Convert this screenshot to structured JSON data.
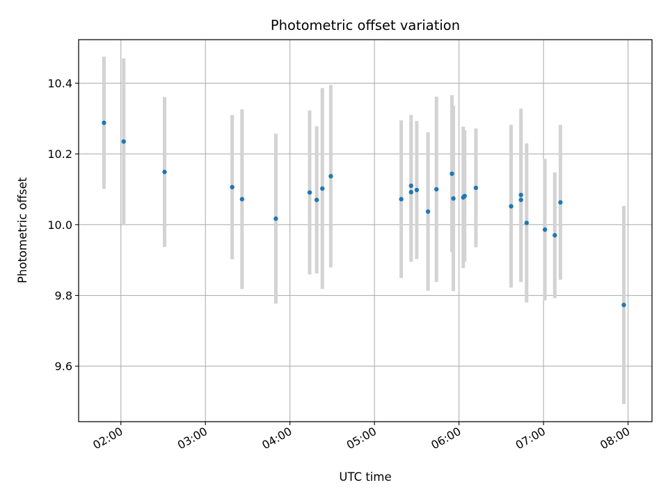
{
  "chart_data": {
    "type": "scatter",
    "title": "Photometric offset variation",
    "xlabel": "UTC time",
    "ylabel": "Photometric offset",
    "x_tick_labels": [
      "02:00",
      "03:00",
      "04:00",
      "05:00",
      "06:00",
      "07:00",
      "08:00"
    ],
    "x_tick_hours": [
      2,
      3,
      4,
      5,
      6,
      7,
      8
    ],
    "y_ticks": [
      9.6,
      9.8,
      10.0,
      10.2,
      10.4
    ],
    "y_tick_labels": [
      "9.6",
      "9.8",
      "10.0",
      "10.2",
      "10.4"
    ],
    "xlim": [
      "01:30",
      "08:17"
    ],
    "ylim": [
      9.443,
      10.523
    ],
    "grid": true,
    "marker_color": "#1f77b4",
    "errorbar_color": "#d3d3d3",
    "points": [
      {
        "time": "01:48",
        "value": 10.288,
        "err": 0.187
      },
      {
        "time": "02:02",
        "value": 10.235,
        "err": 0.235
      },
      {
        "time": "02:31",
        "value": 10.149,
        "err": 0.212
      },
      {
        "time": "03:19",
        "value": 10.106,
        "err": 0.204
      },
      {
        "time": "03:26",
        "value": 10.072,
        "err": 0.254
      },
      {
        "time": "03:50",
        "value": 10.017,
        "err": 0.24
      },
      {
        "time": "04:14",
        "value": 10.091,
        "err": 0.232
      },
      {
        "time": "04:19",
        "value": 10.07,
        "err": 0.208
      },
      {
        "time": "04:23",
        "value": 10.102,
        "err": 0.284
      },
      {
        "time": "04:29",
        "value": 10.137,
        "err": 0.258
      },
      {
        "time": "05:19",
        "value": 10.072,
        "err": 0.223
      },
      {
        "time": "05:26",
        "value": 10.11,
        "err": 0.2
      },
      {
        "time": "05:26",
        "value": 10.092,
        "err": 0.197
      },
      {
        "time": "05:30",
        "value": 10.098,
        "err": 0.195
      },
      {
        "time": "05:38",
        "value": 10.037,
        "err": 0.224
      },
      {
        "time": "05:44",
        "value": 10.1,
        "err": 0.262
      },
      {
        "time": "05:55",
        "value": 10.144,
        "err": 0.222
      },
      {
        "time": "05:56",
        "value": 10.074,
        "err": 0.262
      },
      {
        "time": "06:03",
        "value": 10.077,
        "err": 0.2
      },
      {
        "time": "06:04",
        "value": 10.081,
        "err": 0.186
      },
      {
        "time": "06:12",
        "value": 10.104,
        "err": 0.168
      },
      {
        "time": "06:37",
        "value": 10.052,
        "err": 0.23
      },
      {
        "time": "06:44",
        "value": 10.084,
        "err": 0.244
      },
      {
        "time": "06:44",
        "value": 10.07,
        "err": 0.232
      },
      {
        "time": "06:48",
        "value": 10.005,
        "err": 0.225
      },
      {
        "time": "07:01",
        "value": 9.986,
        "err": 0.2
      },
      {
        "time": "07:08",
        "value": 9.97,
        "err": 0.178
      },
      {
        "time": "07:12",
        "value": 10.063,
        "err": 0.219
      },
      {
        "time": "07:57",
        "value": 9.773,
        "err": 0.28
      }
    ]
  }
}
